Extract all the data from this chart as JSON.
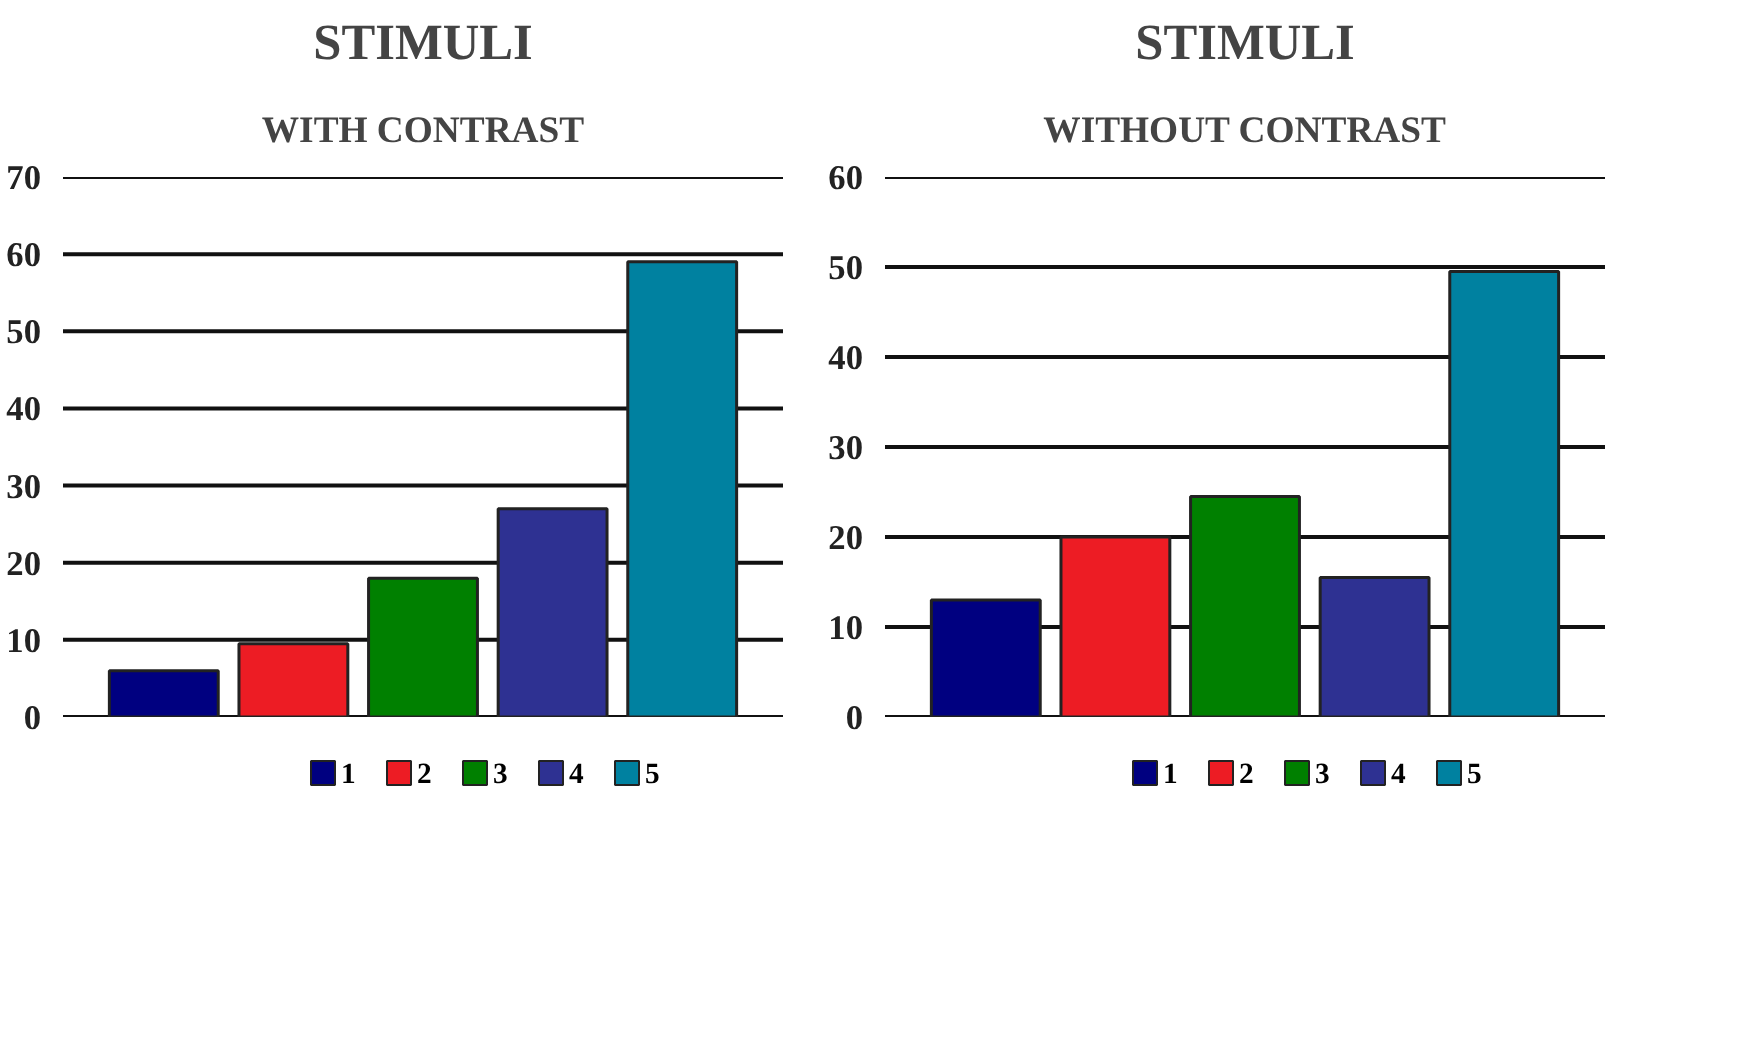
{
  "chart_data": [
    {
      "type": "bar",
      "title": "STIMULI",
      "subtitle": "WITH CONTRAST",
      "categories": [
        null
      ],
      "series": [
        {
          "name": "1",
          "color": "#000080",
          "values": [
            6
          ]
        },
        {
          "name": "2",
          "color": "#ed1c24",
          "values": [
            9.5
          ]
        },
        {
          "name": "3",
          "color": "#008000",
          "values": [
            18
          ]
        },
        {
          "name": "4",
          "color": "#2e3192",
          "values": [
            27
          ]
        },
        {
          "name": "5",
          "color": "#0081a0",
          "values": [
            59
          ]
        }
      ],
      "ylim": [
        0,
        70
      ],
      "yticks": [
        0,
        10,
        20,
        30,
        40,
        50,
        60,
        70
      ],
      "grid": "y",
      "legend": "bottom",
      "tick_labels": "y"
    },
    {
      "type": "bar",
      "title": "STIMULI",
      "subtitle": "WITHOUT CONTRAST",
      "categories": [
        null
      ],
      "series": [
        {
          "name": "1",
          "color": "#000080",
          "values": [
            13
          ]
        },
        {
          "name": "2",
          "color": "#ed1c24",
          "values": [
            20
          ]
        },
        {
          "name": "3",
          "color": "#008000",
          "values": [
            24.5
          ]
        },
        {
          "name": "4",
          "color": "#2e3192",
          "values": [
            15.5
          ]
        },
        {
          "name": "5",
          "color": "#0081a0",
          "values": [
            49.5
          ]
        }
      ],
      "ylim": [
        0,
        60
      ],
      "yticks": [
        0,
        10,
        20,
        30,
        40,
        50,
        60
      ],
      "grid": "y",
      "legend": "bottom",
      "tick_labels": "y"
    }
  ]
}
